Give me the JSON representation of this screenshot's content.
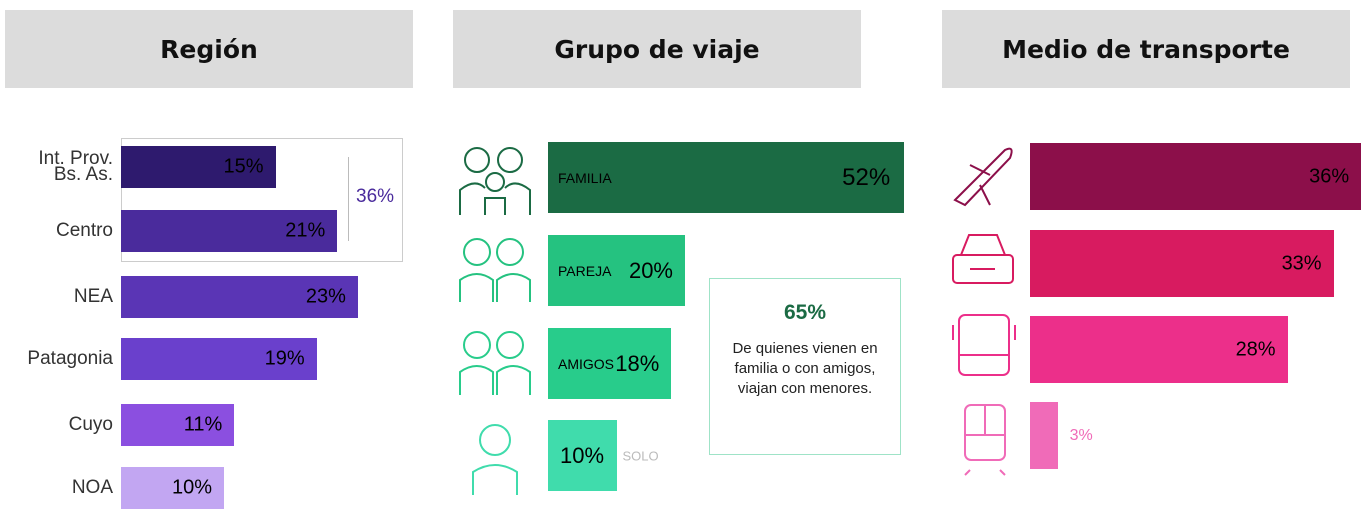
{
  "chart_data": [
    {
      "type": "bar",
      "title": "Región",
      "categories": [
        "Int. Prov.\nBs. As.",
        "Centro",
        "NEA",
        "Patagonia",
        "Cuyo",
        "NOA"
      ],
      "values": [
        15,
        21,
        23,
        19,
        11,
        10
      ],
      "value_labels": [
        "15%",
        "21%",
        "23%",
        "19%",
        "11%",
        "10%"
      ],
      "colors": [
        "#2e1a6e",
        "#4a2b9c",
        "#5a35b5",
        "#6a40cc",
        "#8b4fe0",
        "#c2a6f2"
      ],
      "bracket": {
        "value": 36,
        "label": "36%"
      }
    },
    {
      "type": "bar",
      "title": "Grupo de viaje",
      "categories": [
        "FAMILIA",
        "PAREJA",
        "AMIGOS",
        "SOLO"
      ],
      "values": [
        52,
        20,
        18,
        10
      ],
      "value_labels": [
        "52%",
        "20%",
        "18%",
        "10%"
      ],
      "colors": [
        "#1b6b44",
        "#25c280",
        "#28cc8b",
        "#40dcac"
      ],
      "callout": {
        "value": 65,
        "label": "65%",
        "text": "De quienes vienen en familia o con amigos, viajan con menores."
      }
    },
    {
      "type": "bar",
      "title": "Medio de transporte",
      "categories": [
        null,
        null,
        null,
        null
      ],
      "values": [
        36,
        33,
        28,
        3
      ],
      "value_labels": [
        "36%",
        "33%",
        "28%",
        "3%"
      ],
      "colors": [
        "#8c0f4a",
        "#d81b60",
        "#ec2f8a",
        "#f06bb8"
      ]
    }
  ]
}
